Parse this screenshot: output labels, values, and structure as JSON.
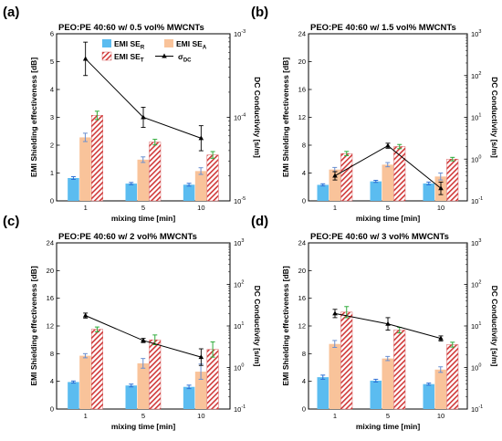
{
  "colors": {
    "reflection": "#5bbcf0",
    "absorption": "#f9c39a",
    "total_hatch": "#d03a3a",
    "axes": "#000000",
    "err_r": "#2d6fd6",
    "err_a": "#6a8fd0",
    "err_t": "#2eab3a",
    "line": "#000000"
  },
  "legend": {
    "r_main": "EMI SE",
    "r_sub": "R",
    "a_main": "EMI SE",
    "a_sub": "A",
    "t_main": "EMI SE",
    "t_sub": "T",
    "s_main": "σ",
    "s_sub": "DC"
  },
  "chart_data": [
    {
      "type": "bar",
      "panel_label": "(a)",
      "title": "PEO:PE 40:60 w/ 0.5 vol% MWCNTs",
      "xlabel": "mixing time [min]",
      "ylabel": "EMI Shielding effectiveness [dB]",
      "y2label": "DC Conductivity [s/m]",
      "categories": [
        "1",
        "5",
        "10"
      ],
      "ylim": [
        0,
        6
      ],
      "yticks": [
        0,
        1,
        2,
        3,
        4,
        5,
        6
      ],
      "y2_log": true,
      "y2lim_exp": [
        -5,
        -3
      ],
      "y2ticks": [
        {
          "exp": -5,
          "label": "10",
          "sup": "-5"
        },
        {
          "exp": -4,
          "label": "10",
          "sup": "-4"
        },
        {
          "exp": -3,
          "label": "10",
          "sup": "-3"
        }
      ],
      "legend_position": "top-right",
      "series": [
        {
          "key": "R",
          "values": [
            0.82,
            0.62,
            0.58
          ],
          "errors": [
            0.05,
            0.04,
            0.05
          ]
        },
        {
          "key": "A",
          "values": [
            2.28,
            1.48,
            1.07
          ],
          "errors": [
            0.15,
            0.1,
            0.12
          ]
        },
        {
          "key": "T",
          "values": [
            3.07,
            2.11,
            1.65
          ],
          "errors": [
            0.15,
            0.1,
            0.12
          ]
        }
      ],
      "conductivity": {
        "key": "DC",
        "exp_values": [
          -3.3,
          -4.0,
          -4.25
        ],
        "exp_errors": [
          0.2,
          0.12,
          0.15
        ]
      }
    },
    {
      "type": "bar",
      "panel_label": "(b)",
      "title": "PEO:PE 40:60 w/ 1.5 vol% MWCNTs",
      "xlabel": "mixing time [min]",
      "ylabel": "EMI Shielding effectiveness [dB]",
      "y2label": "DC Conductivity [s/m]",
      "categories": [
        "1",
        "5",
        "10"
      ],
      "ylim": [
        0,
        24
      ],
      "yticks": [
        0,
        4,
        8,
        12,
        16,
        20,
        24
      ],
      "y2_log": true,
      "y2lim_exp": [
        -1,
        3
      ],
      "y2ticks": [
        {
          "exp": -1,
          "label": "10",
          "sup": "-1"
        },
        {
          "exp": 0,
          "label": "10",
          "sup": "0"
        },
        {
          "exp": 1,
          "label": "10",
          "sup": "1"
        },
        {
          "exp": 2,
          "label": "10",
          "sup": "2"
        },
        {
          "exp": 3,
          "label": "10",
          "sup": "3"
        }
      ],
      "series": [
        {
          "key": "R",
          "values": [
            2.3,
            2.8,
            2.5
          ],
          "errors": [
            0.15,
            0.15,
            0.2
          ]
        },
        {
          "key": "A",
          "values": [
            4.5,
            5.2,
            3.5
          ],
          "errors": [
            0.3,
            0.3,
            0.5
          ]
        },
        {
          "key": "T",
          "values": [
            6.8,
            7.8,
            6.0
          ],
          "errors": [
            0.3,
            0.3,
            0.25
          ]
        }
      ],
      "conductivity": {
        "key": "DC",
        "exp_values": [
          -0.4,
          0.32,
          -0.7
        ],
        "exp_errors": [
          0.1,
          0.06,
          0.15
        ]
      }
    },
    {
      "type": "bar",
      "panel_label": "(c)",
      "title": "PEO:PE 40:60 w/ 2 vol% MWCNTs",
      "xlabel": "mixing time [min]",
      "ylabel": "EMI Shielding effectiveness [dB]",
      "y2label": "DC Conductivity [s/m]",
      "categories": [
        "1",
        "5",
        "10"
      ],
      "ylim": [
        0,
        24
      ],
      "yticks": [
        0,
        4,
        8,
        12,
        16,
        20,
        24
      ],
      "y2_log": true,
      "y2lim_exp": [
        -1,
        3
      ],
      "y2ticks": [
        {
          "exp": -1,
          "label": "10",
          "sup": "-1"
        },
        {
          "exp": 0,
          "label": "10",
          "sup": "0"
        },
        {
          "exp": 1,
          "label": "10",
          "sup": "1"
        },
        {
          "exp": 2,
          "label": "10",
          "sup": "2"
        },
        {
          "exp": 3,
          "label": "10",
          "sup": "3"
        }
      ],
      "series": [
        {
          "key": "R",
          "values": [
            3.9,
            3.4,
            3.2
          ],
          "errors": [
            0.15,
            0.2,
            0.25
          ]
        },
        {
          "key": "A",
          "values": [
            7.7,
            6.6,
            5.4
          ],
          "errors": [
            0.3,
            0.7,
            1.1
          ]
        },
        {
          "key": "T",
          "values": [
            11.5,
            10.0,
            8.6
          ],
          "errors": [
            0.35,
            0.7,
            1.1
          ]
        }
      ],
      "conductivity": {
        "key": "DC",
        "exp_values": [
          1.25,
          0.65,
          0.25
        ],
        "exp_errors": [
          0.06,
          0.05,
          0.2
        ]
      }
    },
    {
      "type": "bar",
      "panel_label": "(d)",
      "title": "PEO:PE 40:60 w/ 3 vol% MWCNTs",
      "xlabel": "mixing time [min]",
      "ylabel": "EMI Shielding effectiveness [dB]",
      "y2label": "DC Conductivity [s/m]",
      "categories": [
        "1",
        "5",
        "10"
      ],
      "ylim": [
        0,
        24
      ],
      "yticks": [
        0,
        4,
        8,
        12,
        16,
        20,
        24
      ],
      "y2_log": true,
      "y2lim_exp": [
        -1,
        3
      ],
      "y2ticks": [
        {
          "exp": -1,
          "label": "10",
          "sup": "-1"
        },
        {
          "exp": 0,
          "label": "10",
          "sup": "0"
        },
        {
          "exp": 1,
          "label": "10",
          "sup": "1"
        },
        {
          "exp": 2,
          "label": "10",
          "sup": "2"
        },
        {
          "exp": 3,
          "label": "10",
          "sup": "3"
        }
      ],
      "series": [
        {
          "key": "R",
          "values": [
            4.6,
            4.1,
            3.6
          ],
          "errors": [
            0.3,
            0.2,
            0.15
          ]
        },
        {
          "key": "A",
          "values": [
            9.4,
            7.3,
            5.7
          ],
          "errors": [
            0.5,
            0.3,
            0.4
          ]
        },
        {
          "key": "T",
          "values": [
            14.0,
            11.4,
            9.3
          ],
          "errors": [
            0.8,
            0.4,
            0.35
          ]
        }
      ],
      "conductivity": {
        "key": "DC",
        "exp_values": [
          1.3,
          1.05,
          0.7
        ],
        "exp_errors": [
          0.1,
          0.15,
          0.06
        ]
      }
    }
  ]
}
